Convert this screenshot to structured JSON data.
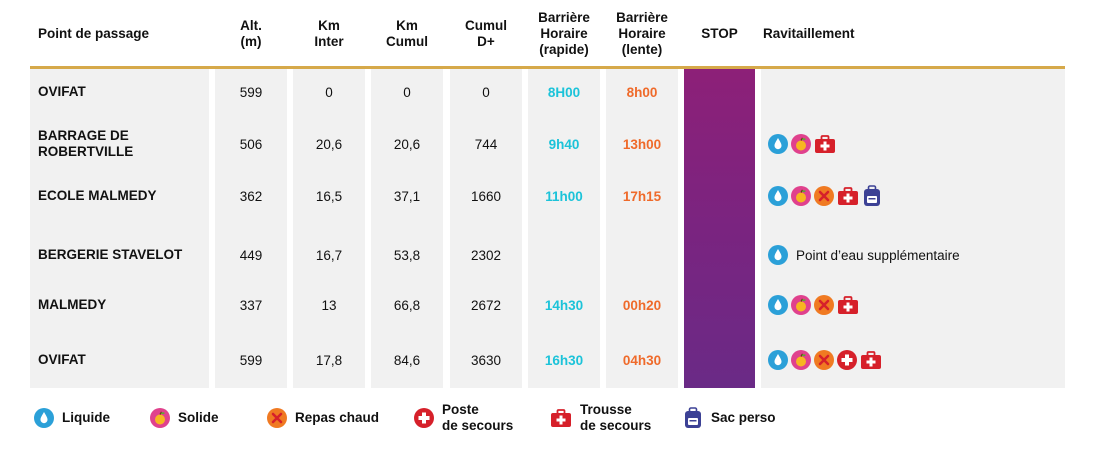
{
  "header": {
    "col_name": "Point de passage",
    "col_alt": "Alt.\n(m)",
    "col_km_inter": "Km\nInter",
    "col_km_cumul": "Km\nCumul",
    "col_cumul_d": "Cumul\nD+",
    "col_bh_rapide": "Barrière\nHoraire\n(rapide)",
    "col_bh_lente": "Barrière\nHoraire\n(lente)",
    "col_stop": "STOP",
    "col_ravitaillement": "Ravitaillement"
  },
  "rows": [
    {
      "name": "OVIFAT",
      "alt": "599",
      "km_inter": "0",
      "km_cumul": "0",
      "cumul_d": "0",
      "bh_rapide": "8H00",
      "bh_lente": "8h00",
      "ravitaillement": [],
      "rav_text": ""
    },
    {
      "name": "BARRAGE DE\nROBERTVILLE",
      "alt": "506",
      "km_inter": "20,6",
      "km_cumul": "20,6",
      "cumul_d": "744",
      "bh_rapide": "9h40",
      "bh_lente": "13h00",
      "ravitaillement": [
        "drop-icon",
        "apple-icon",
        "first-aid-kit-icon"
      ],
      "rav_text": ""
    },
    {
      "name": "ECOLE MALMEDY",
      "alt": "362",
      "km_inter": "16,5",
      "km_cumul": "37,1",
      "cumul_d": "1660",
      "bh_rapide": "11h00",
      "bh_lente": "17h15",
      "ravitaillement": [
        "drop-icon",
        "apple-icon",
        "cutlery-icon",
        "first-aid-kit-icon",
        "backpack-icon"
      ],
      "rav_text": ""
    },
    {
      "name": "BERGERIE STAVELOT",
      "alt": "449",
      "km_inter": "16,7",
      "km_cumul": "53,8",
      "cumul_d": "2302",
      "bh_rapide": "",
      "bh_lente": "",
      "ravitaillement": [
        "drop-icon"
      ],
      "rav_text": "Point d’eau supplémentaire"
    },
    {
      "name": "MALMEDY",
      "alt": "337",
      "km_inter": "13",
      "km_cumul": "66,8",
      "cumul_d": "2672",
      "bh_rapide": "14h30",
      "bh_lente": "00h20",
      "ravitaillement": [
        "drop-icon",
        "apple-icon",
        "cutlery-icon",
        "first-aid-kit-icon"
      ],
      "rav_text": ""
    },
    {
      "name": "OVIFAT",
      "alt": "599",
      "km_inter": "17,8",
      "km_cumul": "84,6",
      "cumul_d": "3630",
      "bh_rapide": "16h30",
      "bh_lente": "04h30",
      "ravitaillement": [
        "drop-icon",
        "apple-icon",
        "cutlery-icon",
        "first-aid-cross-icon",
        "first-aid-kit-icon"
      ],
      "rav_text": ""
    }
  ],
  "legend": [
    {
      "icon": "drop-icon",
      "label": "Liquide"
    },
    {
      "icon": "apple-icon",
      "label": "Solide"
    },
    {
      "icon": "cutlery-icon",
      "label": "Repas chaud"
    },
    {
      "icon": "first-aid-cross-icon",
      "label": "Poste\nde secours"
    },
    {
      "icon": "first-aid-kit-icon",
      "label": "Trousse\nde secours"
    },
    {
      "icon": "backpack-icon",
      "label": "Sac perso"
    }
  ],
  "colors": {
    "rule": "#d6a94a",
    "rapide": "#1cc3d9",
    "lente": "#ef6a2a",
    "stop_top": "#8d2078",
    "stop_bottom": "#6a2a86",
    "drop": "#2ba0d8",
    "apple": "#e0418d",
    "meal": "#f07a22",
    "aid": "#d6202a",
    "bag": "#3c4195"
  }
}
